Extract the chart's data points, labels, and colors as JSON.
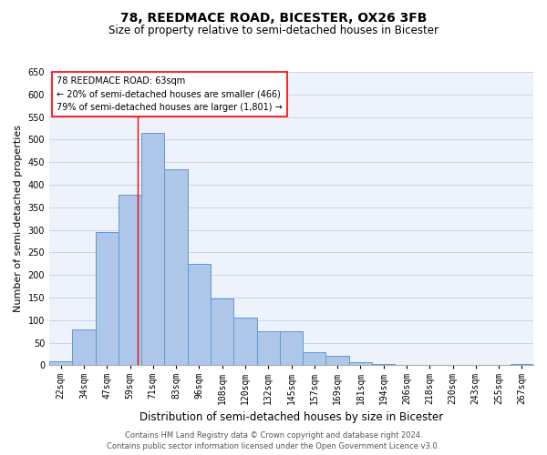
{
  "title": "78, REEDMACE ROAD, BICESTER, OX26 3FB",
  "subtitle": "Size of property relative to semi-detached houses in Bicester",
  "xlabel": "Distribution of semi-detached houses by size in Bicester",
  "ylabel": "Number of semi-detached properties",
  "bar_labels": [
    "22sqm",
    "34sqm",
    "47sqm",
    "59sqm",
    "71sqm",
    "83sqm",
    "96sqm",
    "108sqm",
    "120sqm",
    "132sqm",
    "145sqm",
    "157sqm",
    "169sqm",
    "181sqm",
    "194sqm",
    "206sqm",
    "218sqm",
    "230sqm",
    "243sqm",
    "255sqm",
    "267sqm"
  ],
  "bar_values": [
    10,
    80,
    295,
    378,
    515,
    435,
    225,
    148,
    106,
    75,
    75,
    30,
    22,
    8,
    3,
    0,
    0,
    0,
    0,
    0,
    3
  ],
  "bar_color": "#aec6e8",
  "bar_edge_color": "#5b9bd5",
  "ylim": [
    0,
    650
  ],
  "yticks": [
    0,
    50,
    100,
    150,
    200,
    250,
    300,
    350,
    400,
    450,
    500,
    550,
    600,
    650
  ],
  "red_line_x": 3.33,
  "annotation_title": "78 REEDMACE ROAD: 63sqm",
  "annotation_line1": "← 20% of semi-detached houses are smaller (466)",
  "annotation_line2": "79% of semi-detached houses are larger (1,801) →",
  "footer_line1": "Contains HM Land Registry data © Crown copyright and database right 2024.",
  "footer_line2": "Contains public sector information licensed under the Open Government Licence v3.0.",
  "bg_color": "#eef2fb",
  "grid_color": "#c8d4ee",
  "title_fontsize": 10,
  "subtitle_fontsize": 8.5,
  "xlabel_fontsize": 8.5,
  "ylabel_fontsize": 8,
  "tick_fontsize": 7,
  "annot_fontsize": 7,
  "footer_fontsize": 6
}
